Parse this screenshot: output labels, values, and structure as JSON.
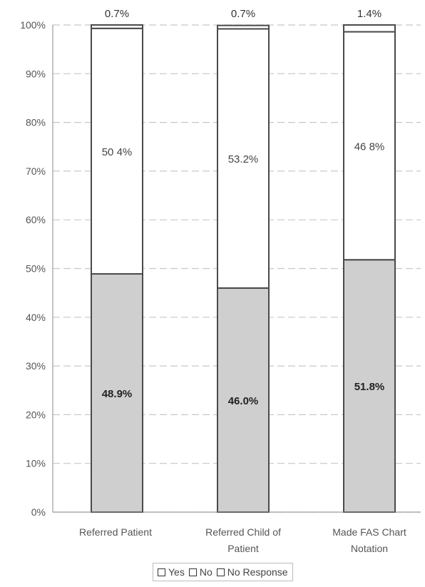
{
  "chart_data": {
    "type": "bar",
    "stacked": true,
    "categories": [
      [
        "Referred Patient"
      ],
      [
        "Referred Child of",
        "Patient"
      ],
      [
        "Made FAS Chart",
        "Notation"
      ]
    ],
    "series": [
      {
        "name": "Yes",
        "values": [
          48.9,
          46.0,
          51.8
        ],
        "labels": [
          "48.9%",
          "46.0%",
          "51.8%"
        ],
        "color": "#cfcfcf"
      },
      {
        "name": "No",
        "values": [
          50.4,
          53.2,
          46.8
        ],
        "labels": [
          "50 4%",
          "53.2%",
          "46 8%"
        ],
        "color": "#ffffff"
      },
      {
        "name": "No Response",
        "values": [
          0.7,
          0.7,
          1.4
        ],
        "labels": [
          "0.7%",
          "0.7%",
          "1.4%"
        ],
        "color": "#ffffff"
      }
    ],
    "y_ticks": [
      "0%",
      "10%",
      "20%",
      "30%",
      "40%",
      "50%",
      "60%",
      "70%",
      "80%",
      "90%",
      "100%"
    ],
    "ylim": [
      0,
      100
    ],
    "grid": true,
    "legend_position": "bottom"
  }
}
